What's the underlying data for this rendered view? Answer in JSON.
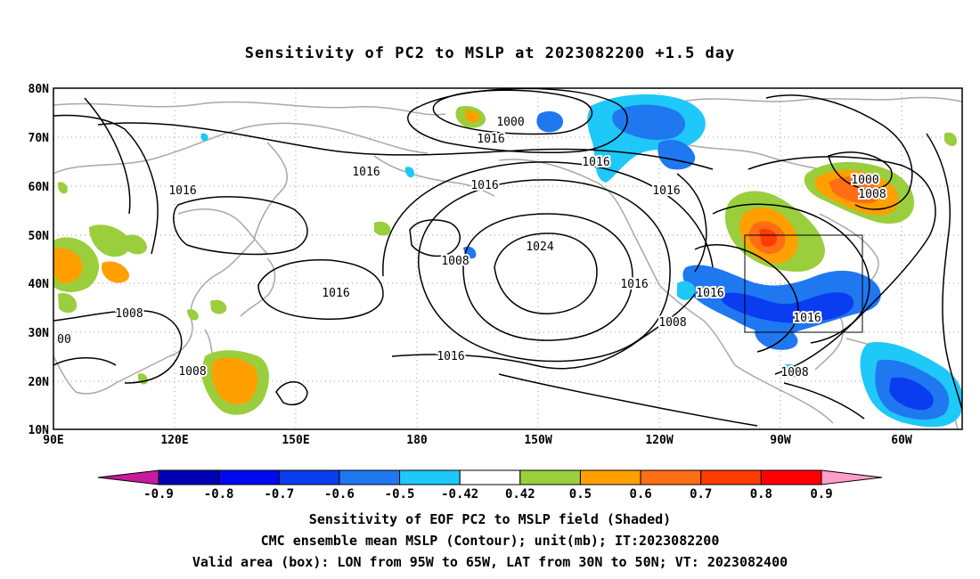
{
  "title": "Sensitivity of PC2 to MSLP at 2023082200 +1.5 day",
  "lat_labels": [
    "80N",
    "70N",
    "60N",
    "50N",
    "40N",
    "30N",
    "20N",
    "10N"
  ],
  "lon_labels": [
    "90E",
    "120E",
    "150E",
    "180",
    "150W",
    "120W",
    "90W",
    "60W"
  ],
  "contour_labels": [
    "1000",
    "1016",
    "1016",
    "1016",
    "1016",
    "1016",
    "1016",
    "1000",
    "1008",
    "1016",
    "1024",
    "1008",
    "1016",
    "1016",
    "1016",
    "1008",
    "1008",
    "1008",
    "1016",
    "1016",
    "1008",
    "00"
  ],
  "colorbar": {
    "labels": [
      "-0.9",
      "-0.8",
      "-0.7",
      "-0.6",
      "-0.5",
      "-0.42",
      "0.42",
      "0.5",
      "0.6",
      "0.7",
      "0.8",
      "0.9"
    ],
    "colors": [
      "#c81a9b",
      "#0000b4",
      "#0008f0",
      "#0a3cf0",
      "#1f78f0",
      "#1ec8f8",
      "#ffffff",
      "#9ace3c",
      "#ffa000",
      "#ff6e14",
      "#ff3c00",
      "#ff0000",
      "#ff9ec8"
    ]
  },
  "captions": [
    "Sensitivity of EOF PC2 to MSLP field (Shaded)",
    "CMC ensemble mean MSLP (Contour); unit(mb); IT:2023082200",
    "Valid area (box): LON from 95W to 65W, LAT from 30N to 50N; VT: 2023082400"
  ]
}
